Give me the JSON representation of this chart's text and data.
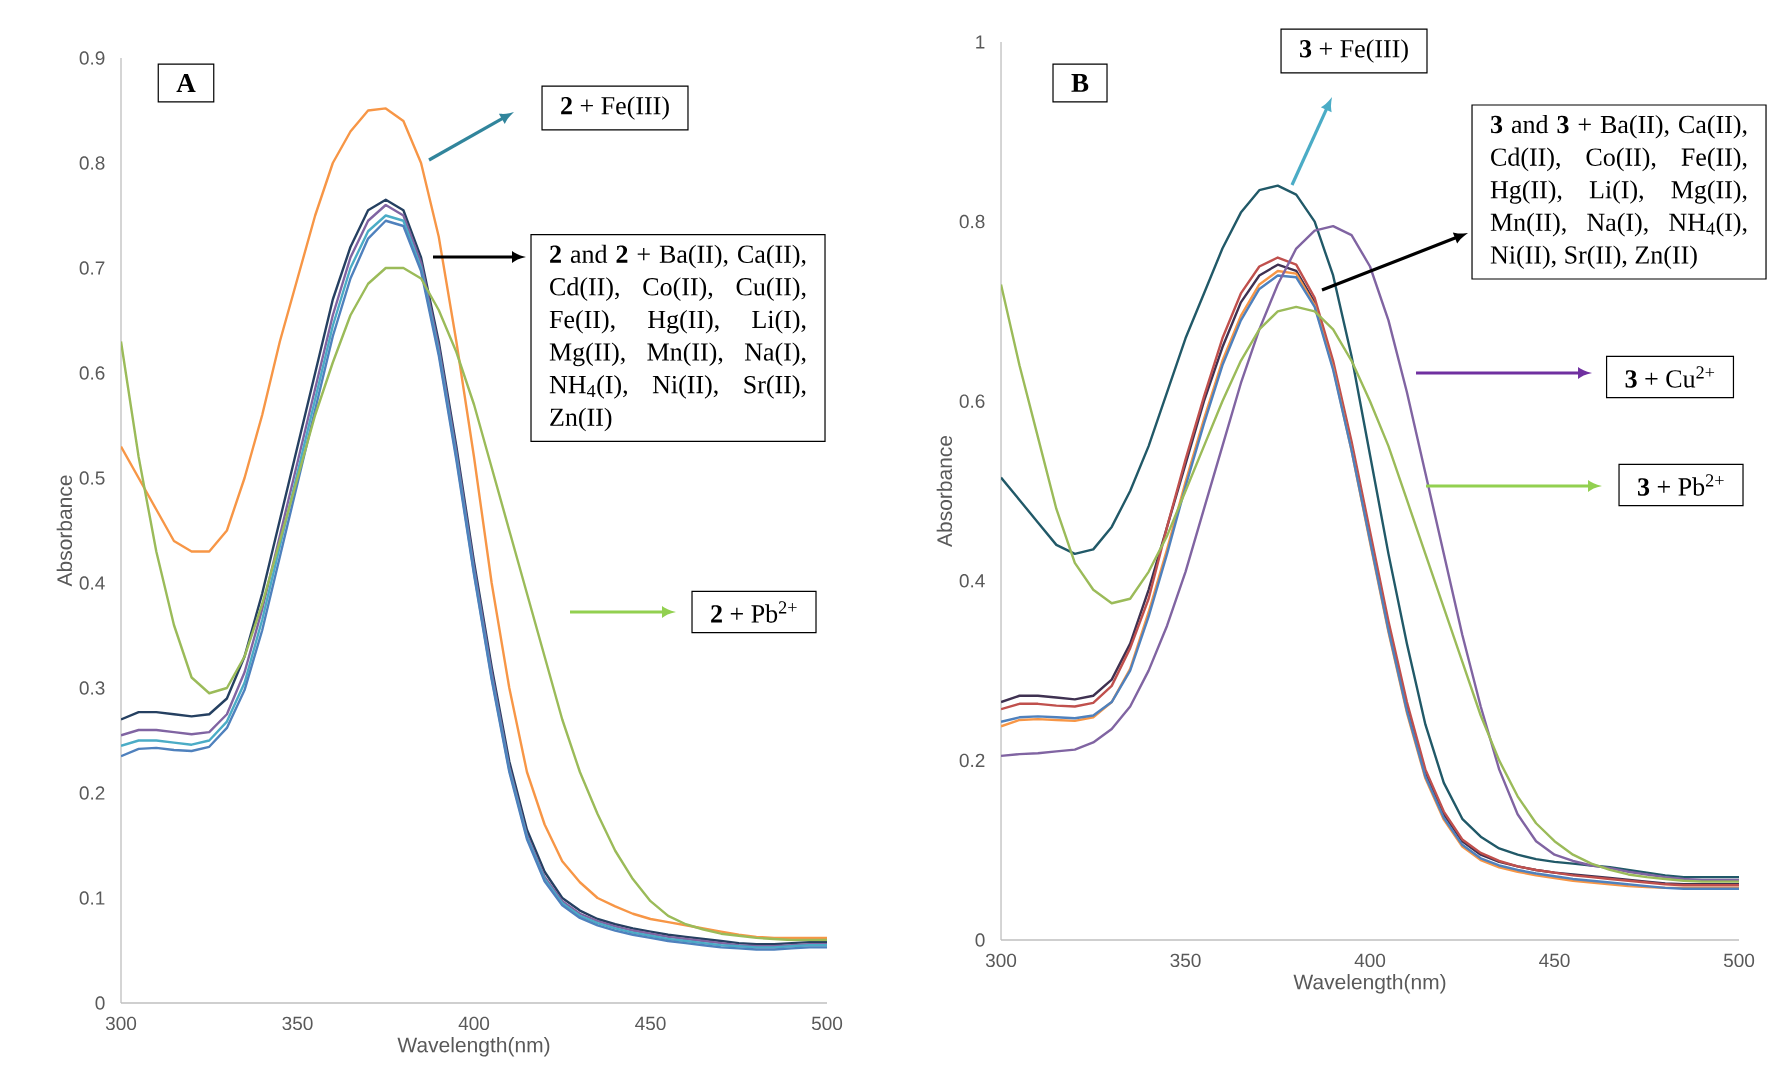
{
  "chart_data": [
    {
      "type": "line",
      "title": "A",
      "xlabel": "Wavelength(nm)",
      "ylabel": "Absorbance",
      "x": [
        300,
        305,
        310,
        315,
        320,
        325,
        330,
        335,
        340,
        345,
        350,
        355,
        360,
        365,
        370,
        375,
        380,
        385,
        390,
        395,
        400,
        405,
        410,
        415,
        420,
        425,
        430,
        435,
        440,
        445,
        450,
        455,
        460,
        465,
        470,
        475,
        480,
        485,
        490,
        495,
        500
      ],
      "xlim": [
        300,
        500
      ],
      "xticks": [
        300,
        350,
        400,
        450,
        500
      ],
      "ylim": [
        0,
        0.9
      ],
      "yticks": [
        0,
        0.1,
        0.2,
        0.3,
        0.4,
        0.5,
        0.6,
        0.7,
        0.8,
        0.9
      ],
      "series": [
        {
          "color": "#254061",
          "values": [
            0.27,
            0.277,
            0.277,
            0.275,
            0.273,
            0.275,
            0.29,
            0.33,
            0.39,
            0.46,
            0.53,
            0.6,
            0.67,
            0.72,
            0.755,
            0.765,
            0.755,
            0.71,
            0.63,
            0.53,
            0.42,
            0.32,
            0.23,
            0.165,
            0.125,
            0.1,
            0.088,
            0.08,
            0.075,
            0.071,
            0.068,
            0.065,
            0.063,
            0.061,
            0.059,
            0.057,
            0.056,
            0.056,
            0.057,
            0.058,
            0.058
          ]
        },
        {
          "color": "#8064a2",
          "values": [
            0.255,
            0.26,
            0.26,
            0.258,
            0.256,
            0.258,
            0.275,
            0.315,
            0.375,
            0.445,
            0.515,
            0.585,
            0.655,
            0.71,
            0.745,
            0.76,
            0.75,
            0.705,
            0.625,
            0.525,
            0.415,
            0.315,
            0.225,
            0.16,
            0.12,
            0.097,
            0.085,
            0.078,
            0.073,
            0.069,
            0.066,
            0.063,
            0.061,
            0.059,
            0.057,
            0.055,
            0.054,
            0.054,
            0.055,
            0.056,
            0.056
          ]
        },
        {
          "color": "#4bacc6",
          "values": [
            0.245,
            0.25,
            0.25,
            0.248,
            0.246,
            0.25,
            0.268,
            0.305,
            0.365,
            0.435,
            0.505,
            0.575,
            0.645,
            0.7,
            0.735,
            0.75,
            0.745,
            0.7,
            0.62,
            0.52,
            0.41,
            0.31,
            0.222,
            0.158,
            0.118,
            0.095,
            0.083,
            0.076,
            0.071,
            0.067,
            0.064,
            0.061,
            0.059,
            0.057,
            0.055,
            0.054,
            0.053,
            0.053,
            0.054,
            0.055,
            0.055
          ]
        },
        {
          "color": "#4f81bd",
          "values": [
            0.235,
            0.242,
            0.243,
            0.241,
            0.24,
            0.244,
            0.262,
            0.298,
            0.355,
            0.425,
            0.495,
            0.565,
            0.635,
            0.69,
            0.728,
            0.745,
            0.74,
            0.697,
            0.617,
            0.517,
            0.408,
            0.308,
            0.22,
            0.156,
            0.116,
            0.093,
            0.081,
            0.074,
            0.069,
            0.065,
            0.062,
            0.059,
            0.057,
            0.055,
            0.053,
            0.052,
            0.051,
            0.051,
            0.052,
            0.053,
            0.053
          ]
        },
        {
          "color": "#f79646",
          "values": [
            0.53,
            0.5,
            0.47,
            0.44,
            0.43,
            0.43,
            0.45,
            0.5,
            0.56,
            0.63,
            0.69,
            0.75,
            0.8,
            0.83,
            0.85,
            0.852,
            0.84,
            0.8,
            0.73,
            0.63,
            0.52,
            0.4,
            0.3,
            0.22,
            0.17,
            0.135,
            0.115,
            0.1,
            0.092,
            0.085,
            0.08,
            0.077,
            0.074,
            0.071,
            0.068,
            0.065,
            0.063,
            0.062,
            0.062,
            0.062,
            0.062
          ]
        },
        {
          "color": "#9bbb59",
          "values": [
            0.63,
            0.52,
            0.43,
            0.36,
            0.31,
            0.295,
            0.3,
            0.33,
            0.38,
            0.44,
            0.5,
            0.56,
            0.61,
            0.655,
            0.685,
            0.7,
            0.7,
            0.69,
            0.66,
            0.62,
            0.57,
            0.51,
            0.45,
            0.39,
            0.33,
            0.27,
            0.22,
            0.18,
            0.145,
            0.118,
            0.097,
            0.083,
            0.075,
            0.07,
            0.066,
            0.064,
            0.062,
            0.061,
            0.06,
            0.06,
            0.06
          ]
        }
      ],
      "annotations": [
        "**2** + Fe(III)",
        "**2** and **2** + Ba(II), Ca(II), Cd(II), Co(II), Cu(II), Fe(II), Hg(II), Li(I), Mg(II), Mn(II), Na(I), NH$_{4}$(I), Ni(II), Sr(II), Zn(II)",
        "**2** + Pb$^{2+}$"
      ]
    },
    {
      "type": "line",
      "title": "B",
      "xlabel": "Wavelength(nm)",
      "ylabel": "Absorbance",
      "x": [
        300,
        305,
        310,
        315,
        320,
        325,
        330,
        335,
        340,
        345,
        350,
        355,
        360,
        365,
        370,
        375,
        380,
        385,
        390,
        395,
        400,
        405,
        410,
        415,
        420,
        425,
        430,
        435,
        440,
        445,
        450,
        455,
        460,
        465,
        470,
        475,
        480,
        485,
        490,
        495,
        500
      ],
      "xlim": [
        300,
        500
      ],
      "xticks": [
        300,
        350,
        400,
        450,
        500
      ],
      "ylim": [
        0,
        1
      ],
      "yticks": [
        0,
        0.2,
        0.4,
        0.6,
        0.8,
        1
      ],
      "series": [
        {
          "color": "#3f3151",
          "values": [
            0.265,
            0.272,
            0.272,
            0.27,
            0.268,
            0.272,
            0.29,
            0.33,
            0.39,
            0.46,
            0.53,
            0.6,
            0.66,
            0.71,
            0.74,
            0.752,
            0.745,
            0.71,
            0.64,
            0.55,
            0.45,
            0.35,
            0.26,
            0.185,
            0.14,
            0.11,
            0.095,
            0.087,
            0.082,
            0.078,
            0.075,
            0.073,
            0.071,
            0.069,
            0.067,
            0.065,
            0.063,
            0.062,
            0.062,
            0.062,
            0.062
          ]
        },
        {
          "color": "#c0504d",
          "values": [
            0.257,
            0.263,
            0.263,
            0.261,
            0.26,
            0.264,
            0.283,
            0.325,
            0.38,
            0.46,
            0.535,
            0.605,
            0.67,
            0.72,
            0.75,
            0.76,
            0.752,
            0.715,
            0.645,
            0.555,
            0.455,
            0.355,
            0.265,
            0.19,
            0.143,
            0.112,
            0.097,
            0.088,
            0.082,
            0.078,
            0.075,
            0.072,
            0.07,
            0.068,
            0.066,
            0.064,
            0.062,
            0.061,
            0.061,
            0.061,
            0.061
          ]
        },
        {
          "color": "#f79646",
          "values": [
            0.238,
            0.245,
            0.246,
            0.245,
            0.244,
            0.248,
            0.265,
            0.302,
            0.365,
            0.435,
            0.51,
            0.58,
            0.645,
            0.695,
            0.73,
            0.745,
            0.742,
            0.707,
            0.637,
            0.545,
            0.443,
            0.343,
            0.253,
            0.18,
            0.134,
            0.104,
            0.089,
            0.081,
            0.076,
            0.072,
            0.069,
            0.066,
            0.064,
            0.062,
            0.06,
            0.059,
            0.058,
            0.058,
            0.058,
            0.058,
            0.058
          ]
        },
        {
          "color": "#4f81bd",
          "values": [
            0.243,
            0.248,
            0.249,
            0.248,
            0.247,
            0.25,
            0.265,
            0.3,
            0.36,
            0.43,
            0.505,
            0.575,
            0.64,
            0.69,
            0.725,
            0.74,
            0.738,
            0.705,
            0.635,
            0.545,
            0.445,
            0.345,
            0.255,
            0.182,
            0.136,
            0.106,
            0.091,
            0.083,
            0.078,
            0.074,
            0.071,
            0.068,
            0.066,
            0.064,
            0.062,
            0.06,
            0.058,
            0.057,
            0.057,
            0.057,
            0.057
          ]
        },
        {
          "color": "#215968",
          "values": [
            0.515,
            0.49,
            0.465,
            0.44,
            0.43,
            0.435,
            0.46,
            0.5,
            0.55,
            0.61,
            0.67,
            0.72,
            0.77,
            0.81,
            0.835,
            0.84,
            0.83,
            0.8,
            0.74,
            0.65,
            0.54,
            0.43,
            0.33,
            0.24,
            0.175,
            0.135,
            0.115,
            0.102,
            0.095,
            0.09,
            0.087,
            0.085,
            0.083,
            0.081,
            0.078,
            0.075,
            0.072,
            0.07,
            0.07,
            0.07,
            0.07
          ]
        },
        {
          "color": "#8064a2",
          "values": [
            0.205,
            0.207,
            0.208,
            0.21,
            0.212,
            0.22,
            0.235,
            0.26,
            0.3,
            0.35,
            0.41,
            0.48,
            0.55,
            0.62,
            0.68,
            0.73,
            0.77,
            0.79,
            0.795,
            0.785,
            0.75,
            0.69,
            0.61,
            0.52,
            0.43,
            0.34,
            0.26,
            0.19,
            0.14,
            0.11,
            0.095,
            0.088,
            0.083,
            0.08,
            0.076,
            0.073,
            0.07,
            0.068,
            0.067,
            0.067,
            0.067
          ]
        },
        {
          "color": "#9bbb59",
          "values": [
            0.73,
            0.64,
            0.56,
            0.48,
            0.42,
            0.39,
            0.375,
            0.38,
            0.41,
            0.45,
            0.5,
            0.55,
            0.6,
            0.645,
            0.68,
            0.7,
            0.705,
            0.7,
            0.68,
            0.645,
            0.6,
            0.55,
            0.49,
            0.43,
            0.37,
            0.31,
            0.25,
            0.2,
            0.16,
            0.13,
            0.11,
            0.095,
            0.085,
            0.078,
            0.073,
            0.07,
            0.068,
            0.066,
            0.065,
            0.065,
            0.065
          ]
        }
      ],
      "annotations": [
        "**3** + Fe(III)",
        "**3** and **3** + Ba(II), Ca(II), Cd(II), Co(II), Fe(II), Hg(II), Li(I), Mg(II), Mn(II), Na(I), NH$_{4}$(I), Ni(II), Sr(II), Zn(II)",
        "**3** + Cu$^{2+}$",
        "**3** + Pb$^{2+}$"
      ]
    }
  ]
}
